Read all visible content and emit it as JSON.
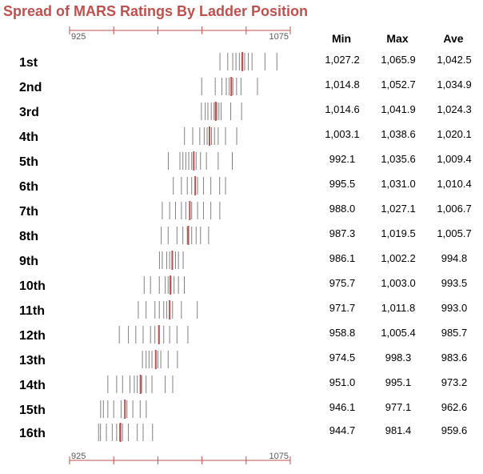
{
  "title": "Spread of MARS Ratings By Ladder Position",
  "colors": {
    "title": "#c0504d",
    "axis": "#c0504d",
    "tick": "#808080",
    "average": "#c0504d"
  },
  "table": {
    "headers": [
      "Min",
      "Max",
      "Ave"
    ],
    "rows": [
      {
        "rank": "1st",
        "min": "1,027.2",
        "max": "1,065.9",
        "ave": "1,042.5"
      },
      {
        "rank": "2nd",
        "min": "1,014.8",
        "max": "1,052.7",
        "ave": "1,034.9"
      },
      {
        "rank": "3rd",
        "min": "1,014.6",
        "max": "1,041.9",
        "ave": "1,024.3"
      },
      {
        "rank": "4th",
        "min": "1,003.1",
        "max": "1,038.6",
        "ave": "1,020.1"
      },
      {
        "rank": "5th",
        "min": "992.1",
        "max": "1,035.6",
        "ave": "1,009.4"
      },
      {
        "rank": "6th",
        "min": "995.5",
        "max": "1,031.0",
        "ave": "1,010.4"
      },
      {
        "rank": "7th",
        "min": "988.0",
        "max": "1,027.1",
        "ave": "1,006.7"
      },
      {
        "rank": "8th",
        "min": "987.3",
        "max": "1,019.5",
        "ave": "1,005.7"
      },
      {
        "rank": "9th",
        "min": "986.1",
        "max": "1,002.2",
        "ave": "994.8"
      },
      {
        "rank": "10th",
        "min": "975.7",
        "max": "1,003.0",
        "ave": "993.5"
      },
      {
        "rank": "11th",
        "min": "971.7",
        "max": "1,011.8",
        "ave": "993.0"
      },
      {
        "rank": "12th",
        "min": "958.8",
        "max": "1,005.4",
        "ave": "985.7"
      },
      {
        "rank": "13th",
        "min": "974.5",
        "max": "998.3",
        "ave": "983.6"
      },
      {
        "rank": "14th",
        "min": "951.0",
        "max": "995.1",
        "ave": "973.2"
      },
      {
        "rank": "15th",
        "min": "946.1",
        "max": "977.1",
        "ave": "962.6"
      },
      {
        "rank": "16th",
        "min": "944.7",
        "max": "981.4",
        "ave": "959.6"
      }
    ]
  },
  "chart_data": {
    "type": "strip",
    "title": "Spread of MARS Ratings By Ladder Position",
    "xlim": [
      925,
      1075
    ],
    "x_tick_labels": [
      "925",
      "1075"
    ],
    "x_ticks": [
      925,
      955,
      985,
      1015,
      1045,
      1075
    ],
    "axis_positions": [
      "top",
      "bottom"
    ],
    "categories": [
      "1st",
      "2nd",
      "3rd",
      "4th",
      "5th",
      "6th",
      "7th",
      "8th",
      "9th",
      "10th",
      "11th",
      "12th",
      "13th",
      "14th",
      "15th",
      "16th"
    ],
    "series": [
      {
        "values": [
          1027.2,
          1032.5,
          1035.9,
          1038.1,
          1040.4,
          1042.0,
          1044.0,
          1046.5,
          1049.0,
          1057.8,
          1065.9
        ],
        "average": 1042.5
      },
      {
        "values": [
          1014.8,
          1024.0,
          1028.5,
          1031.5,
          1033.5,
          1036.0,
          1038.5,
          1041.5,
          1052.7
        ],
        "average": 1034.9
      },
      {
        "values": [
          1014.6,
          1017.2,
          1019.0,
          1021.3,
          1023.2,
          1025.1,
          1026.5,
          1028.0,
          1034.5,
          1041.9
        ],
        "average": 1024.3
      },
      {
        "values": [
          1003.1,
          1008.7,
          1013.5,
          1016.5,
          1018.5,
          1021.5,
          1023.5,
          1026.0,
          1031.0,
          1038.6
        ],
        "average": 1020.1
      },
      {
        "values": [
          992.1,
          1000.0,
          1002.0,
          1004.0,
          1006.0,
          1008.0,
          1011.0,
          1014.0,
          1018.0,
          1026.0,
          1035.6
        ],
        "average": 1009.4
      },
      {
        "values": [
          995.5,
          1001.0,
          1005.0,
          1008.0,
          1012.0,
          1016.0,
          1021.0,
          1027.0,
          1031.0
        ],
        "average": 1010.4
      },
      {
        "values": [
          988.0,
          993.0,
          997.0,
          1001.0,
          1004.0,
          1008.0,
          1012.0,
          1016.0,
          1021.0,
          1027.1
        ],
        "average": 1006.7
      },
      {
        "values": [
          987.3,
          992.0,
          998.0,
          1002.0,
          1005.0,
          1008.0,
          1011.0,
          1014.0,
          1019.5
        ],
        "average": 1005.7
      },
      {
        "values": [
          986.1,
          988.0,
          991.0,
          993.0,
          995.0,
          997.0,
          999.0,
          1002.2
        ],
        "average": 994.8
      },
      {
        "values": [
          975.7,
          980.0,
          986.0,
          990.0,
          992.0,
          994.0,
          996.0,
          999.0,
          1003.0
        ],
        "average": 993.5
      },
      {
        "values": [
          971.7,
          977.0,
          983.0,
          986.0,
          989.0,
          991.0,
          995.0,
          1001.0,
          1011.8
        ],
        "average": 993.0
      },
      {
        "values": [
          958.8,
          965.0,
          970.0,
          975.0,
          980.0,
          983.0,
          986.0,
          989.0,
          993.0,
          998.0,
          1005.4
        ],
        "average": 985.7
      },
      {
        "values": [
          974.5,
          977.0,
          979.0,
          981.0,
          985.0,
          987.0,
          992.0,
          998.3
        ],
        "average": 983.6
      },
      {
        "values": [
          951.0,
          957.0,
          961.0,
          966.0,
          969.0,
          971.0,
          974.0,
          977.0,
          981.0,
          990.0,
          995.1
        ],
        "average": 973.2
      },
      {
        "values": [
          946.1,
          948.0,
          951.0,
          955.0,
          960.0,
          964.0,
          968.0,
          973.0,
          977.1
        ],
        "average": 962.6
      },
      {
        "values": [
          944.7,
          946.0,
          950.0,
          954.0,
          957.0,
          959.0,
          961.0,
          965.0,
          971.0,
          975.0,
          981.4
        ],
        "average": 959.6
      }
    ]
  }
}
